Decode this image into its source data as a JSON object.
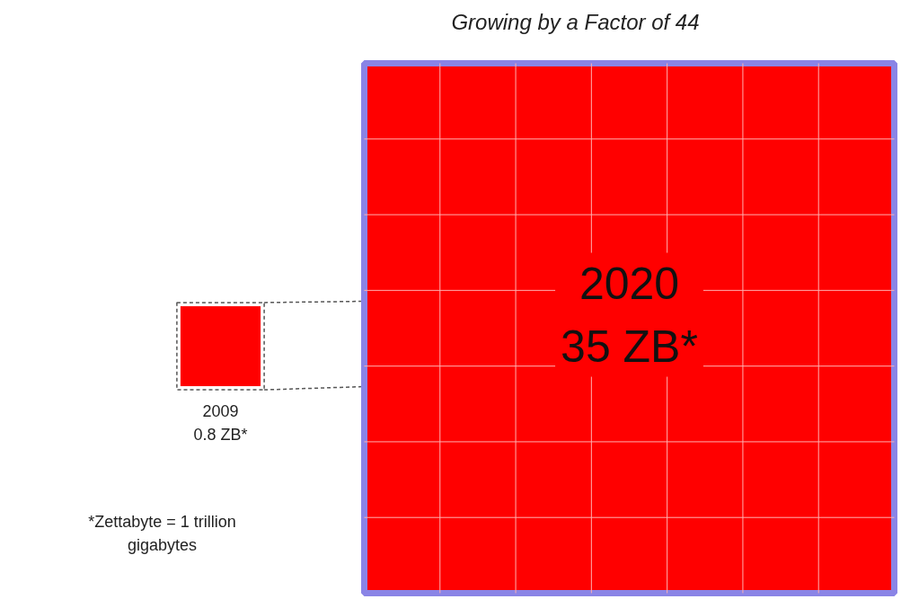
{
  "chart_data": {
    "type": "other",
    "title": "Growing by a Factor of 44",
    "categories": [
      "2009",
      "2020"
    ],
    "values": [
      0.8,
      35
    ],
    "value_labels": [
      "0.8 ZB*",
      "35 ZB*"
    ],
    "colors": [
      "#ff0000",
      "#ff0000"
    ],
    "annotations": [
      "*Zettabyte = 1 trillion gigabytes"
    ]
  }
}
